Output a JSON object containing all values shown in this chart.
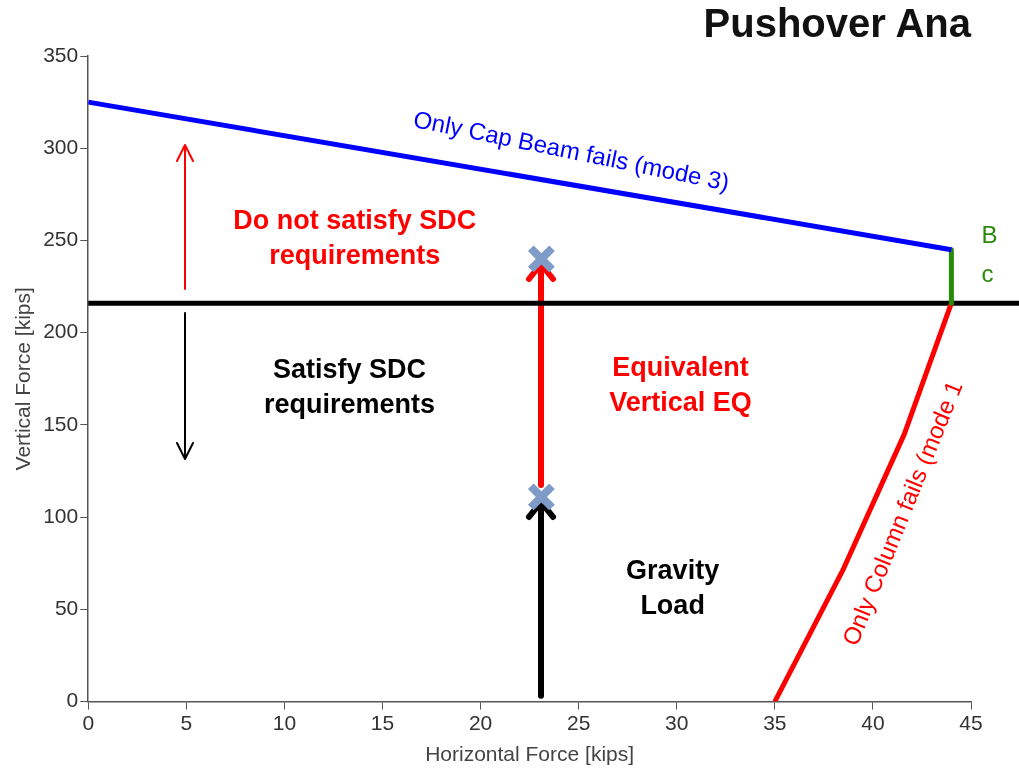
{
  "chart_data": {
    "type": "line",
    "title": "Pushover Ana",
    "xlabel": "Horizontal Force [kips]",
    "ylabel": "Vertical Force [kips]",
    "xlim": [
      0,
      45
    ],
    "xticks": [
      0,
      5,
      10,
      15,
      20,
      25,
      30,
      35,
      40,
      45
    ],
    "ylim": [
      0,
      350
    ],
    "yticks": [
      0,
      50,
      100,
      150,
      200,
      250,
      300,
      350
    ],
    "grid": false,
    "legend": false,
    "series": [
      {
        "type": "line",
        "color": "#0000ff",
        "x": [
          0,
          44
        ],
        "values": [
          325,
          245
        ]
      },
      {
        "type": "line",
        "color": "#2a8a0a",
        "x": [
          44,
          44
        ],
        "values": [
          245,
          216
        ]
      },
      {
        "type": "line",
        "color": "#ff0000",
        "x": [
          35,
          38.5,
          41.6,
          44
        ],
        "values": [
          0,
          72,
          145,
          216
        ]
      },
      {
        "type": "scatter",
        "color": "#7f9cc8",
        "marker": "cross",
        "x": [
          23.1,
          23.1
        ],
        "values": [
          111,
          240
        ]
      }
    ],
    "ref_lines": [
      {
        "axis": "y",
        "value": 216,
        "color": "#000000"
      }
    ],
    "annotations": [
      "Only Cap Beam fails (mode 3)",
      "Do not satisfy SDC\nrequirements",
      "Satisfy SDC\nrequirements",
      "Equivalent\nVertical EQ",
      "Gravity\nLoad",
      "Only Column fails (mode 1",
      "B",
      "c"
    ]
  }
}
